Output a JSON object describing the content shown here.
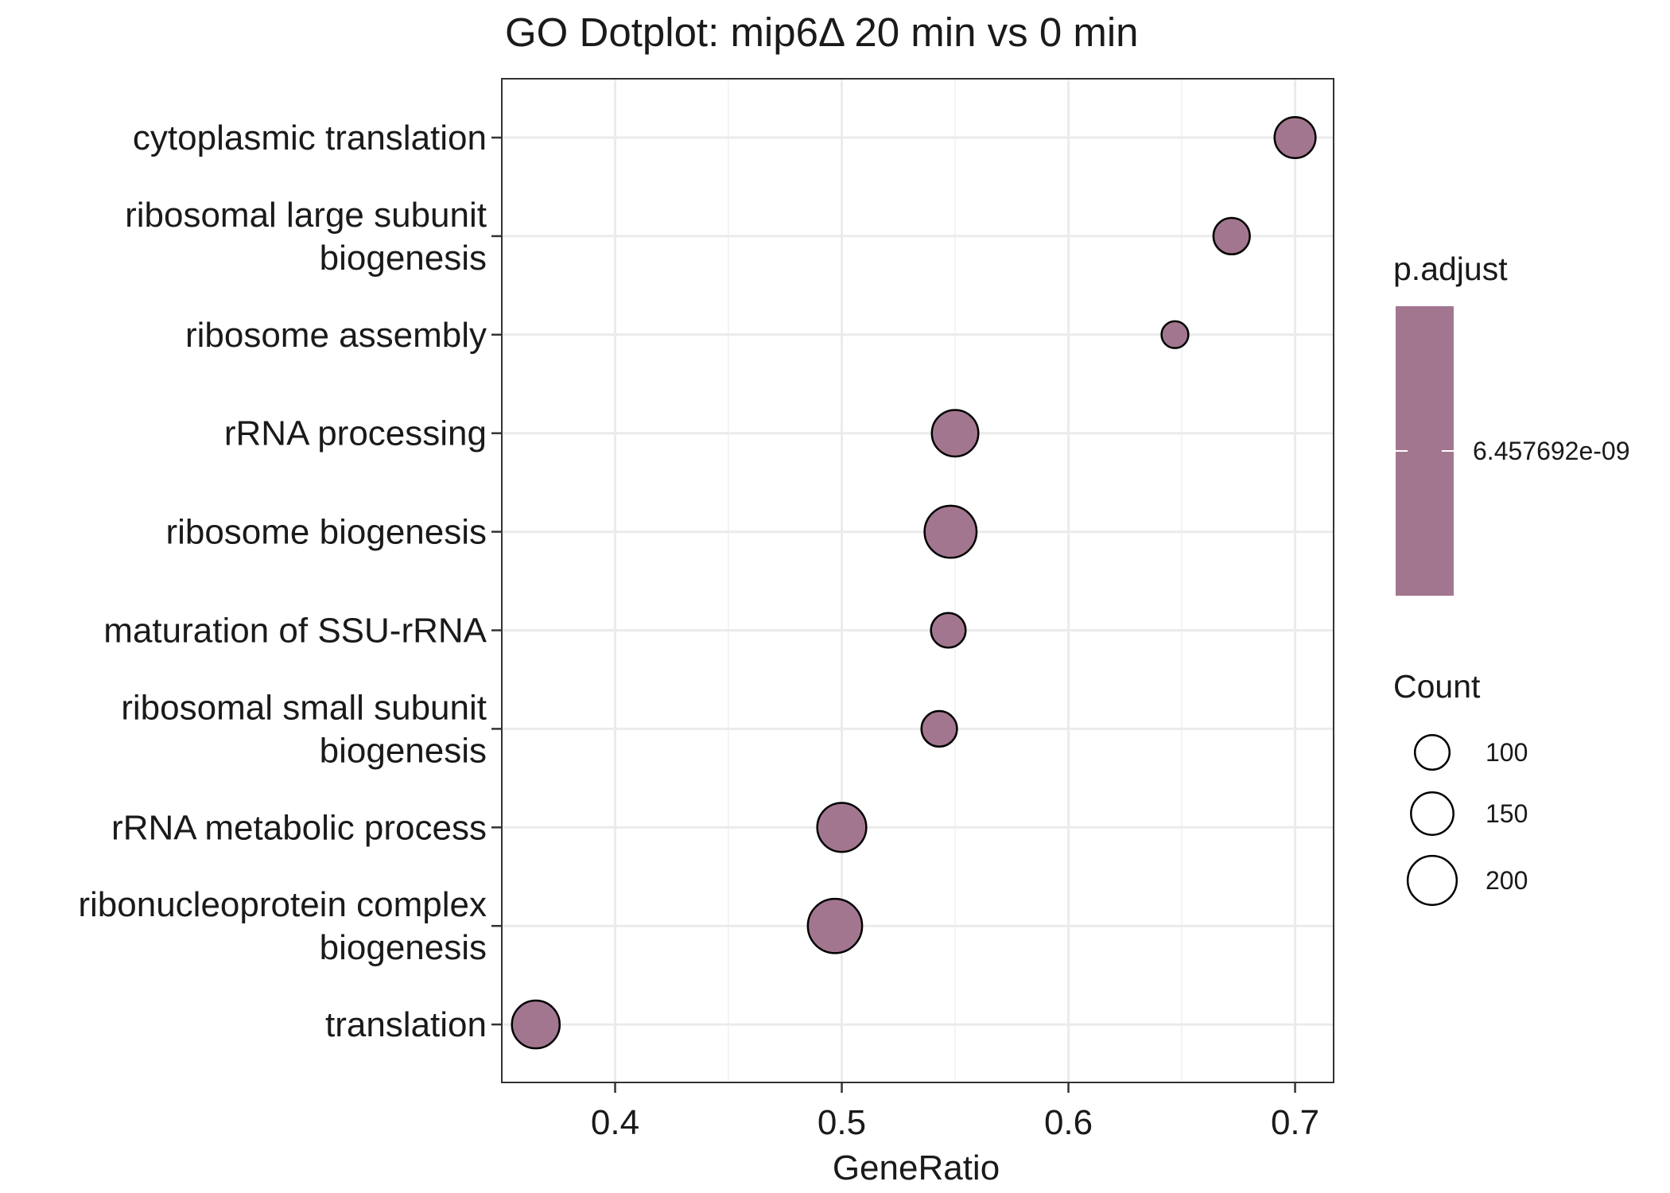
{
  "chart_data": {
    "type": "scatter",
    "title": "GO Dotplot: mip6Δ 20 min vs 0 min",
    "xlabel": "GeneRatio",
    "ylabel": "",
    "xlim": [
      0.35,
      0.717
    ],
    "x_ticks": [
      0.4,
      0.5,
      0.6,
      0.7
    ],
    "x_tick_labels": [
      "0.4",
      "0.5",
      "0.6",
      "0.7"
    ],
    "grid": true,
    "categories": [
      [
        "cytoplasmic translation"
      ],
      [
        "ribosomal large subunit",
        "biogenesis"
      ],
      [
        "ribosome assembly"
      ],
      [
        "rRNA processing"
      ],
      [
        "ribosome biogenesis"
      ],
      [
        "maturation of SSU-rRNA"
      ],
      [
        "ribosomal small subunit",
        "biogenesis"
      ],
      [
        "rRNA metabolic process"
      ],
      [
        "ribonucleoprotein complex",
        "biogenesis"
      ],
      [
        "translation"
      ]
    ],
    "points": [
      {
        "x": 0.7,
        "count": 140
      },
      {
        "x": 0.672,
        "count": 110
      },
      {
        "x": 0.647,
        "count": 60
      },
      {
        "x": 0.55,
        "count": 180
      },
      {
        "x": 0.548,
        "count": 225
      },
      {
        "x": 0.547,
        "count": 100
      },
      {
        "x": 0.543,
        "count": 105
      },
      {
        "x": 0.5,
        "count": 200
      },
      {
        "x": 0.497,
        "count": 245
      },
      {
        "x": 0.365,
        "count": 190
      }
    ],
    "point_color": "#a3768f",
    "legend_color": {
      "title": "p.adjust",
      "label": "6.457692e-09",
      "color": "#a3768f"
    },
    "legend_size": {
      "title": "Count",
      "entries": [
        {
          "label": "100",
          "count": 100
        },
        {
          "label": "150",
          "count": 150
        },
        {
          "label": "200",
          "count": 200
        }
      ]
    },
    "legend_placement": "right"
  }
}
